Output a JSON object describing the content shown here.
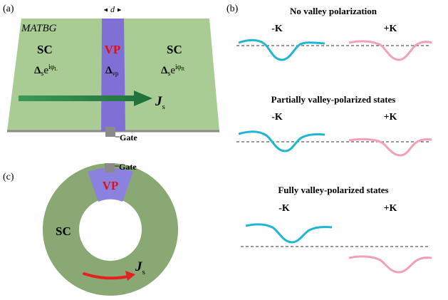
{
  "panel_a": {
    "label": "(a)",
    "material": "MATBG",
    "width_symbol": "d",
    "left_region": {
      "title": "SC",
      "delta": "Δ",
      "delta_sub": "s",
      "phase_base": "e",
      "phase_exp": "iφ",
      "phase_sub": "L"
    },
    "middle_region": {
      "title": "VP",
      "delta": "Δ",
      "delta_sub": "vp"
    },
    "right_region": {
      "title": "SC",
      "delta": "Δ",
      "delta_sub": "s",
      "phase_base": "e",
      "phase_exp": "iφ",
      "phase_sub": "R"
    },
    "current": {
      "symbol": "J",
      "sub": "s"
    },
    "gate_label": "Gate",
    "colors": {
      "slab": "#a8cc94",
      "vp_strip": "#8070d6",
      "arrow": "#2e8a4a",
      "gate": "#8a8a8a"
    }
  },
  "panel_b": {
    "label": "(b)",
    "sections": [
      {
        "title": "No valley polarization",
        "left": "-K",
        "right": "+K"
      },
      {
        "title": "Partially valley-polarized states",
        "left": "-K",
        "right": "+K"
      },
      {
        "title": "Fully valley-polarized states",
        "left": "-K",
        "right": "+K"
      }
    ],
    "colors": {
      "minus_k": "#1fb6d3",
      "plus_k": "#f2a0b6"
    }
  },
  "panel_c": {
    "label": "(c)",
    "sc_label": "SC",
    "vp_label": "VP",
    "gate_label": "Gate",
    "current": {
      "symbol": "J",
      "sub": "s"
    },
    "colors": {
      "ring": "#8aa874",
      "vp": "#8b82e0",
      "arrow": "#e52020",
      "vp_text": "#e01010"
    }
  }
}
